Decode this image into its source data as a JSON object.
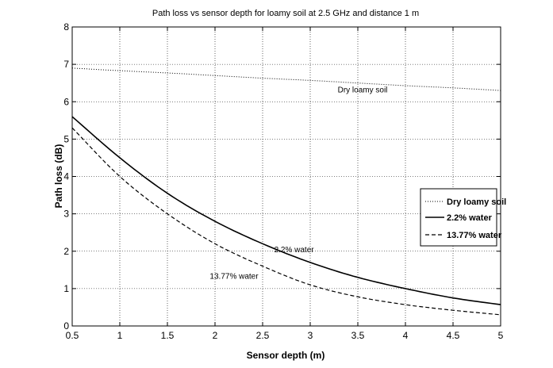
{
  "chart_data": {
    "type": "line",
    "title": "Path loss vs sensor depth for loamy soil at 2.5 GHz and distance 1 m",
    "xlabel": "Sensor depth (m)",
    "ylabel": "Path loss (dB)",
    "xlim": [
      0.5,
      5
    ],
    "ylim": [
      0,
      8
    ],
    "xticks": [
      "0.5",
      "1",
      "1.5",
      "2",
      "2.5",
      "3",
      "3.5",
      "4",
      "4.5",
      "5"
    ],
    "yticks": [
      "0",
      "1",
      "2",
      "3",
      "4",
      "5",
      "6",
      "7",
      "8"
    ],
    "grid": true,
    "legend_position": "right",
    "x": [
      0.5,
      1,
      1.5,
      2,
      2.5,
      3,
      3.5,
      4,
      4.5,
      5
    ],
    "series": [
      {
        "name": "Dry loamy soil",
        "style": "dotted",
        "color": "#000000",
        "values": [
          6.9,
          6.83,
          6.77,
          6.7,
          6.63,
          6.57,
          6.5,
          6.43,
          6.37,
          6.3
        ]
      },
      {
        "name": "2.2% water",
        "style": "solid",
        "color": "#000000",
        "values": [
          5.6,
          4.5,
          3.55,
          2.8,
          2.2,
          1.7,
          1.3,
          1.0,
          0.75,
          0.57
        ]
      },
      {
        "name": "13.77% water",
        "style": "dashed",
        "color": "#000000",
        "values": [
          5.3,
          4.0,
          3.0,
          2.2,
          1.6,
          1.1,
          0.78,
          0.57,
          0.42,
          0.3
        ]
      }
    ],
    "annotations": [
      {
        "text": "Dry loamy soil",
        "x": 3.55,
        "y": 6.25
      },
      {
        "text": "2.2% water",
        "x": 2.83,
        "y": 1.97
      },
      {
        "text": "13.77% water",
        "x": 2.2,
        "y": 1.26
      }
    ]
  }
}
